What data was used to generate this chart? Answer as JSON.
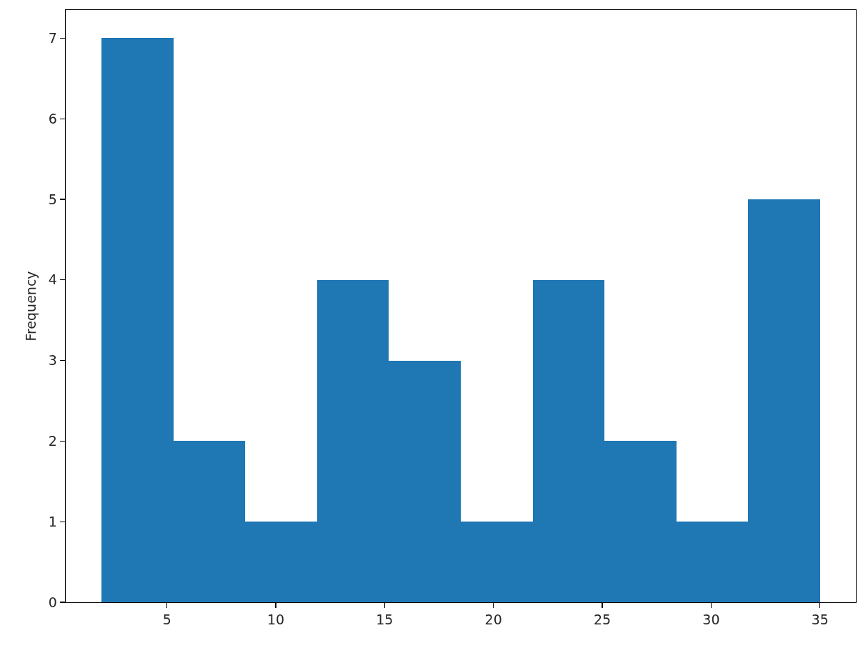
{
  "chart_data": {
    "type": "histogram",
    "ylabel": "Frequency",
    "bins": [
      2,
      5.3,
      8.6,
      11.9,
      15.2,
      18.5,
      21.8,
      25.1,
      28.4,
      31.7,
      35
    ],
    "values": [
      7,
      2,
      1,
      4,
      3,
      1,
      4,
      2,
      1,
      5
    ],
    "color": "#1f77b4",
    "xlim": [
      0.35,
      36.65
    ],
    "xticks": [
      5,
      10,
      15,
      20,
      25,
      30,
      35
    ],
    "ylim": [
      0,
      7.35
    ],
    "yticks": [
      0,
      1,
      2,
      3,
      4,
      5,
      6,
      7
    ],
    "grid": false,
    "legend": false
  }
}
